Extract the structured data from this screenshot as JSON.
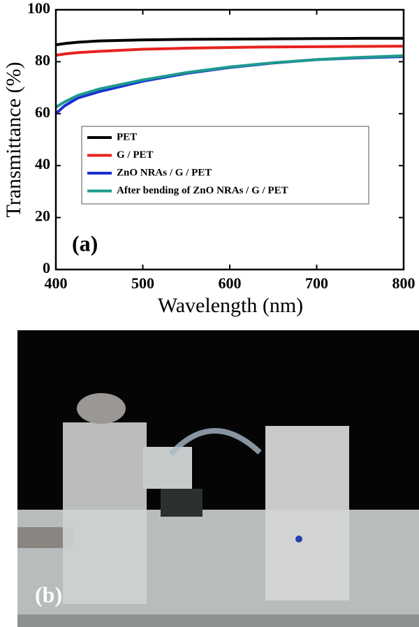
{
  "chart_data": {
    "type": "line",
    "xlabel": "Wavelength (nm)",
    "ylabel": "Transmittance (%)",
    "annotations": [
      "(a)"
    ],
    "x": [
      400,
      410,
      425,
      450,
      500,
      550,
      600,
      650,
      700,
      750,
      800
    ],
    "series": [
      {
        "name": "PET",
        "color": "#000000",
        "values": [
          86.5,
          87,
          87.5,
          88,
          88.4,
          88.6,
          88.7,
          88.8,
          88.9,
          89,
          89
        ]
      },
      {
        "name": "G / PET",
        "color": "#e8221f",
        "values": [
          82.5,
          83,
          83.5,
          84,
          84.8,
          85.2,
          85.5,
          85.7,
          85.8,
          85.9,
          86
        ]
      },
      {
        "name": "ZnO NRAs / G / PET",
        "color": "#1a2fd6",
        "values": [
          60,
          63,
          66,
          68.5,
          72.5,
          75.5,
          77.8,
          79.5,
          80.8,
          81.5,
          82
        ]
      },
      {
        "name": "After bending of ZnO NRAs / G / PET",
        "color": "#1f9a8f",
        "values": [
          62.5,
          64.5,
          67,
          69.5,
          73,
          75.8,
          78,
          79.6,
          80.8,
          81.7,
          82.3
        ]
      }
    ],
    "xlim": [
      400,
      800
    ],
    "xticks": [
      400,
      500,
      600,
      700,
      800
    ],
    "ylim": [
      0,
      100
    ],
    "yticks": [
      0,
      20,
      40,
      60,
      80,
      100
    ],
    "legend": "center"
  },
  "photo": {
    "label": "(b)"
  }
}
